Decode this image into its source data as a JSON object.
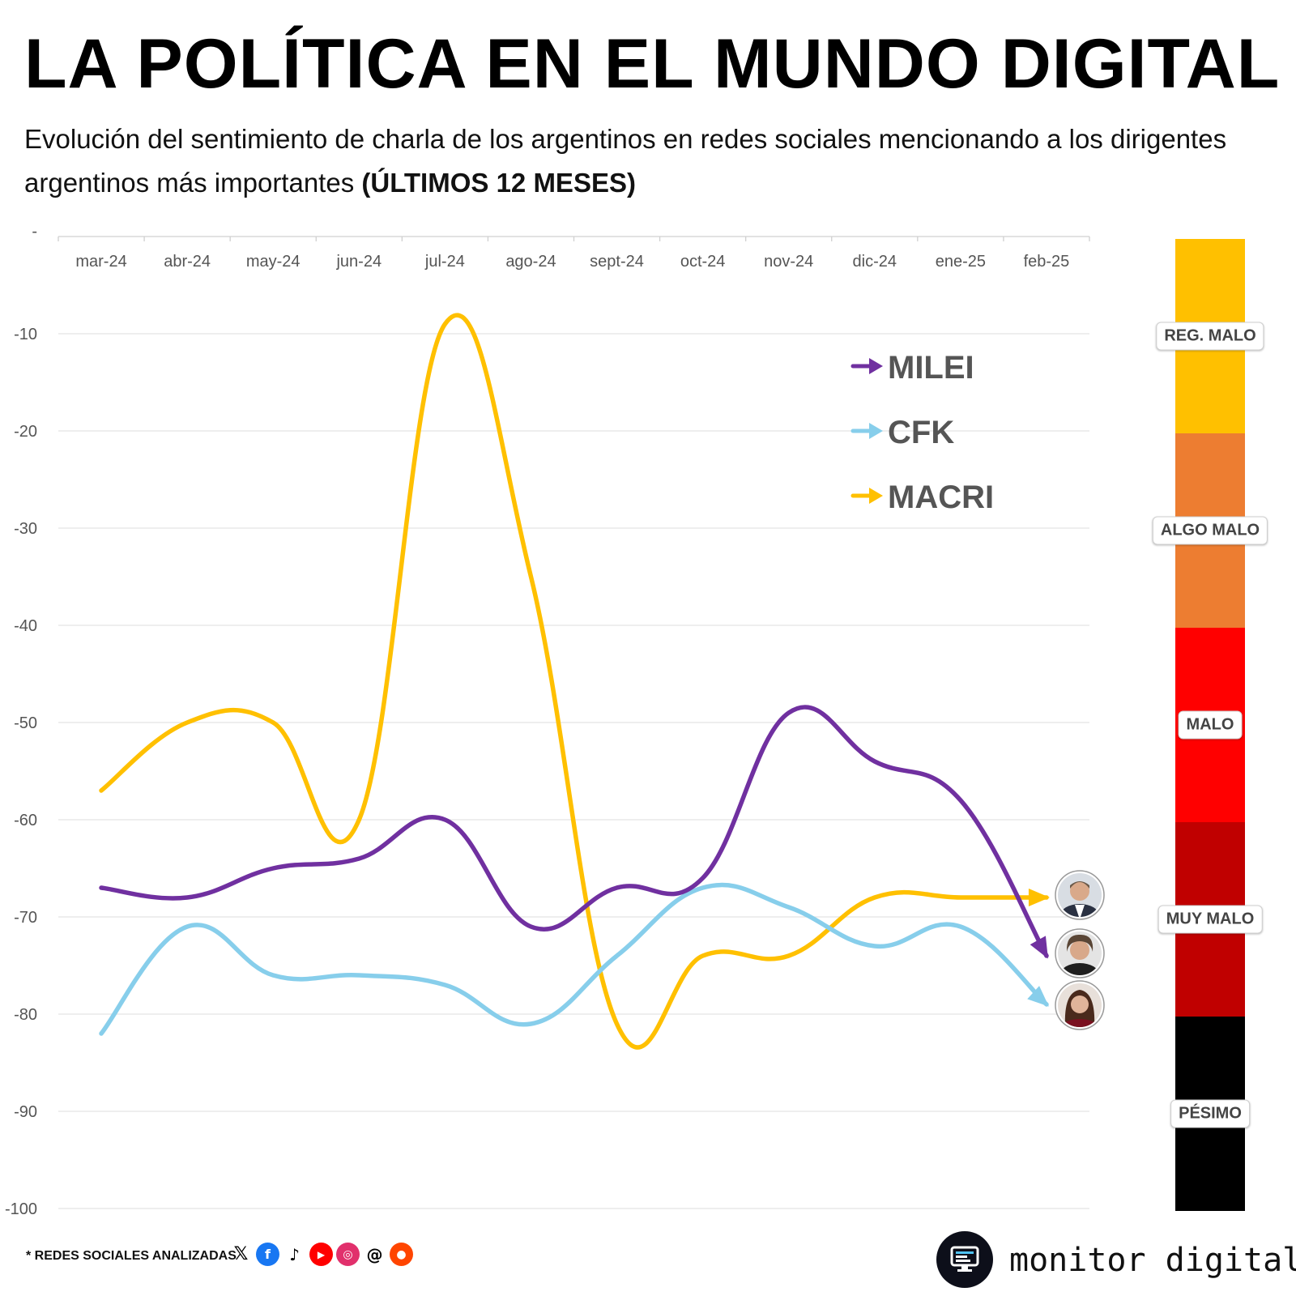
{
  "title": "LA POLÍTICA EN EL MUNDO DIGITAL",
  "subtitle": {
    "text": "Evolución del sentimiento de charla de los argentinos en redes sociales mencionando a los dirigentes argentinos más importantes ",
    "bold": "(ÚLTIMOS 12 MESES)"
  },
  "chart_data": {
    "type": "line",
    "title": "",
    "xlabel": "",
    "ylabel": "",
    "categories": [
      "mar-24",
      "abr-24",
      "may-24",
      "jun-24",
      "jul-24",
      "ago-24",
      "sept-24",
      "oct-24",
      "nov-24",
      "dic-24",
      "ene-25",
      "feb-25"
    ],
    "ylim": [
      -100,
      0
    ],
    "y_ticks": [
      "-",
      "-10",
      "-20",
      "-30",
      "-40",
      "-50",
      "-60",
      "-70",
      "-80",
      "-90",
      "-100"
    ],
    "grid": true,
    "legend_position": "top-right",
    "series": [
      {
        "name": "MILEI",
        "color": "#7030A0",
        "values": [
          -67,
          -68,
          -65,
          -64,
          -60,
          -71,
          -67,
          -66,
          -49,
          -54,
          -58,
          -74
        ]
      },
      {
        "name": "CFK",
        "color": "#87CEEB",
        "values": [
          -82,
          -71,
          -76,
          -76,
          -77,
          -81,
          -74,
          -67,
          -69,
          -73,
          -71,
          -79
        ]
      },
      {
        "name": "MACRI",
        "color": "#FFC000",
        "values": [
          -57,
          -50,
          -50,
          -60,
          -9,
          -35,
          -81,
          -74,
          -74,
          -68,
          -68,
          -68
        ]
      }
    ]
  },
  "sentiment_scale": [
    {
      "label": "REG. MALO",
      "color": "#FFC000"
    },
    {
      "label": "ALGO MALO",
      "color": "#ED7D31"
    },
    {
      "label": "MALO",
      "color": "#FF0000"
    },
    {
      "label": "MUY MALO",
      "color": "#C00000"
    },
    {
      "label": "PÉSIMO",
      "color": "#000000"
    }
  ],
  "footer": {
    "note": "* REDES SOCIALES ANALIZADAS",
    "social_icons": [
      "x-icon",
      "facebook-icon",
      "tiktok-icon",
      "youtube-icon",
      "instagram-icon",
      "threads-icon",
      "reddit-icon"
    ],
    "brand_icon": "monitor-icon",
    "brand": "monitor digital"
  }
}
